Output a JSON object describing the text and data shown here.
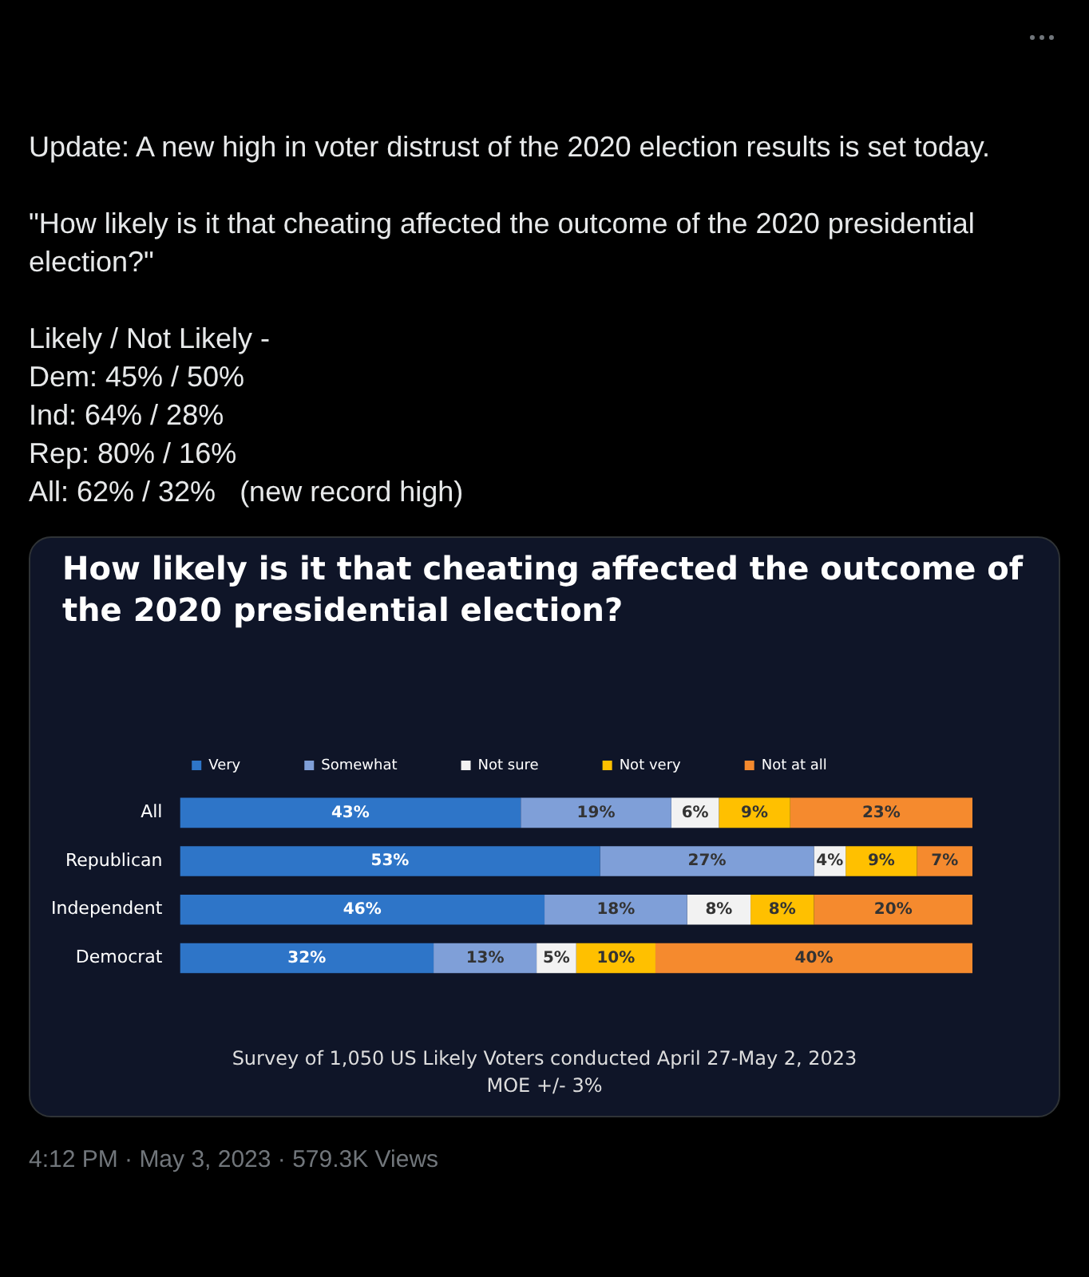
{
  "chart_data": {
    "type": "bar",
    "orientation": "horizontal",
    "stacked": true,
    "title": "How likely is it that cheating affected the outcome of the 2020 presidential election?",
    "annotations": [
      "Update: A new high in voter distrust of the 2020 election results is set today.",
      "\"How likely is it that cheating affected the outcome of the 2020 presidential election?\"",
      "Likely / Not Likely -",
      "Dem: 45% / 50%",
      "Ind: 64% / 28%",
      "Rep: 80% / 16%",
      "All: 62% / 32%   (new record high)",
      "Survey of 1,050 US Likely Voters conducted April 27-May 2, 2023",
      "MOE +/- 3%",
      "4:12 PM · May 3, 2023 · 579.3K Views"
    ],
    "categories": [
      "All",
      "Republican",
      "Independent",
      "Democrat"
    ],
    "series": [
      {
        "name": "Very",
        "color": "#2e75c8",
        "values": [
          43,
          53,
          46,
          32
        ],
        "value_labels": [
          "43%",
          "53%",
          "46%",
          "32%"
        ]
      },
      {
        "name": "Somewhat",
        "color": "#7f9fd8",
        "values": [
          19,
          27,
          18,
          13
        ],
        "value_labels": [
          "19%",
          "27%",
          "18%",
          "13%"
        ]
      },
      {
        "name": "Not sure",
        "color": "#f2f2f2",
        "values": [
          6,
          4,
          8,
          5
        ],
        "value_labels": [
          "6%",
          "4%",
          "8%",
          "5%"
        ]
      },
      {
        "name": "Not very",
        "color": "#ffc000",
        "values": [
          9,
          9,
          8,
          10
        ],
        "value_labels": [
          "9%",
          "9%",
          "8%",
          "10%"
        ]
      },
      {
        "name": "Not at all",
        "color": "#f58a2e",
        "values": [
          23,
          7,
          20,
          40
        ],
        "value_labels": [
          "23%",
          "7%",
          "20%",
          "40%"
        ]
      }
    ],
    "xlim": [
      0,
      100
    ],
    "legend": "top",
    "tick_labels": "y"
  }
}
